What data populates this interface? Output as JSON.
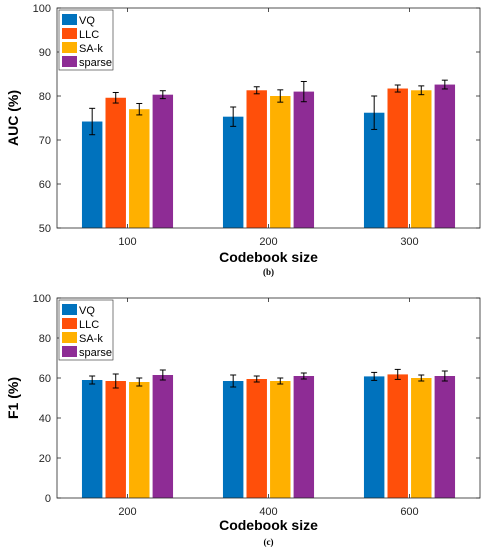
{
  "chart_data": [
    {
      "type": "bar",
      "caption": "(b)",
      "xlabel": "Codebook size",
      "ylabel": "AUC (%)",
      "ylim": [
        50,
        100
      ],
      "yticks": [
        50,
        60,
        70,
        80,
        90,
        100
      ],
      "categories": [
        "100",
        "200",
        "300"
      ],
      "grid": false,
      "legend": "top-left",
      "series": [
        {
          "name": "VQ",
          "color": "#0072bd",
          "values": [
            74.2,
            75.3,
            76.2
          ],
          "errors": [
            3.0,
            2.2,
            3.8
          ]
        },
        {
          "name": "LLC",
          "color": "#ff4f0a",
          "values": [
            79.6,
            81.3,
            81.7
          ],
          "errors": [
            1.2,
            0.8,
            0.8
          ]
        },
        {
          "name": "SA-k",
          "color": "#ffb000",
          "values": [
            77.0,
            80.0,
            81.3
          ],
          "errors": [
            1.3,
            1.4,
            1.0
          ]
        },
        {
          "name": "sparse",
          "color": "#8e2c95",
          "values": [
            80.3,
            81.0,
            82.6
          ],
          "errors": [
            0.9,
            2.3,
            1.0
          ]
        }
      ]
    },
    {
      "type": "bar",
      "caption": "(c)",
      "xlabel": "Codebook size",
      "ylabel": "F1 (%)",
      "ylim": [
        0,
        100
      ],
      "yticks": [
        0,
        20,
        40,
        60,
        80,
        100
      ],
      "categories": [
        "200",
        "400",
        "600"
      ],
      "grid": false,
      "legend": "top-left",
      "series": [
        {
          "name": "VQ",
          "color": "#0072bd",
          "values": [
            59.0,
            58.5,
            60.8
          ],
          "errors": [
            2.0,
            3.0,
            2.0
          ]
        },
        {
          "name": "LLC",
          "color": "#ff4f0a",
          "values": [
            58.5,
            59.5,
            61.8
          ],
          "errors": [
            3.5,
            1.5,
            2.5
          ]
        },
        {
          "name": "SA-k",
          "color": "#ffb000",
          "values": [
            58.0,
            58.5,
            60.0
          ],
          "errors": [
            2.0,
            1.5,
            1.5
          ]
        },
        {
          "name": "sparse",
          "color": "#8e2c95",
          "values": [
            61.5,
            61.0,
            61.0
          ],
          "errors": [
            2.5,
            1.5,
            2.5
          ]
        }
      ]
    }
  ]
}
